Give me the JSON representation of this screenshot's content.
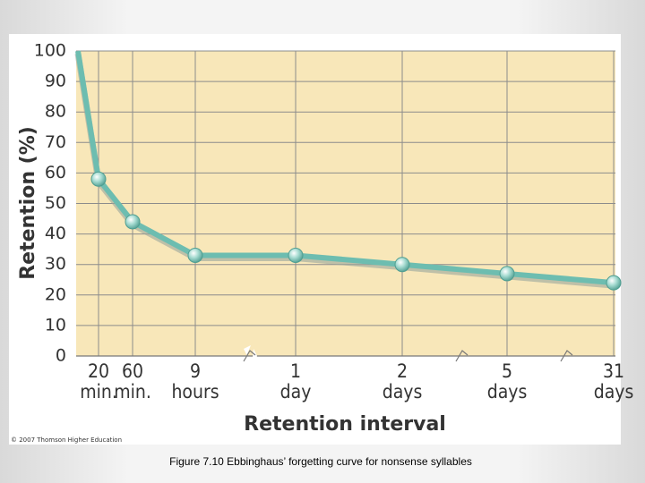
{
  "chart_data": {
    "type": "line",
    "y_label": "Retention (%)",
    "x_label": "Retention interval",
    "categories": [
      null,
      "20 min.",
      "60 min.",
      "9 hours",
      "1 day",
      "2 days",
      "5 days",
      "31 days"
    ],
    "values": [
      100,
      58,
      44,
      33,
      33,
      30,
      27,
      24
    ],
    "color": "#6dbdb0",
    "ylim": [
      0,
      100
    ],
    "yticks": [
      0,
      10,
      20,
      30,
      40,
      50,
      60,
      70,
      80,
      90,
      100
    ],
    "grid": true
  },
  "copyright": "© 2007 Thomson Higher Education",
  "caption": "Figure 7.10 Ebbinghaus’ forgetting curve for nonsense syllables"
}
